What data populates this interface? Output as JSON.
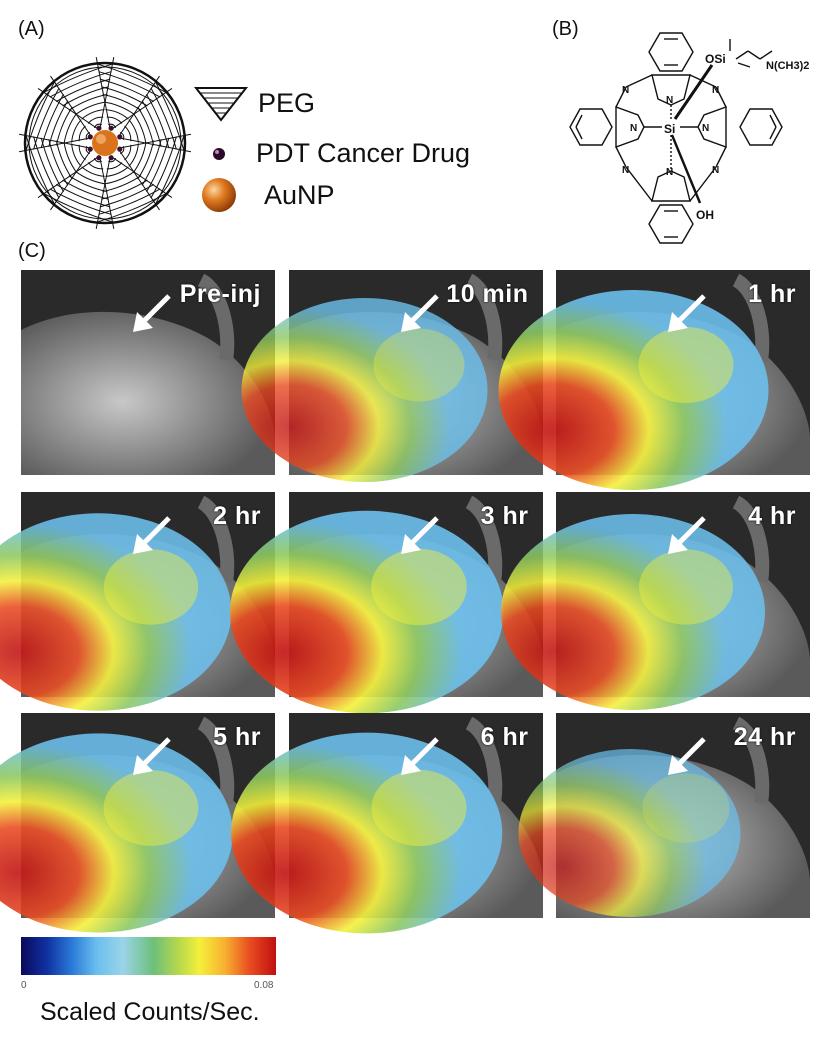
{
  "panels": {
    "a": {
      "label": "(A)",
      "legend": [
        {
          "label": "PEG",
          "icon": "peg-cone-icon"
        },
        {
          "label": "PDT Cancer Drug",
          "icon": "drug-dot-icon"
        },
        {
          "label": "AuNP",
          "icon": "gold-nanoparticle-icon"
        }
      ]
    },
    "b": {
      "label": "(B)",
      "labels": {
        "osi": "OSi",
        "amine": "N(CH3)2",
        "si": "Si",
        "oh": "OH",
        "n": "N"
      }
    },
    "c": {
      "label": "(C)",
      "timepoints": [
        {
          "label": "Pre-inj",
          "intensity": 0
        },
        {
          "label": "10 min",
          "intensity": 0.55
        },
        {
          "label": "1 hr",
          "intensity": 0.75
        },
        {
          "label": "2 hr",
          "intensity": 0.72
        },
        {
          "label": "3 hr",
          "intensity": 0.78
        },
        {
          "label": "4 hr",
          "intensity": 0.7
        },
        {
          "label": "5 hr",
          "intensity": 0.74
        },
        {
          "label": "6 hr",
          "intensity": 0.76
        },
        {
          "label": "24 hr",
          "intensity": 0.35
        }
      ],
      "colorbar": {
        "min_label": "0",
        "max_label": "0.08",
        "caption": "Scaled Counts/Sec."
      }
    }
  },
  "colors": {
    "gold": "#d9741c",
    "heat_red": "#c01010",
    "heat_yellow": "#f4f03a",
    "heat_green": "#8cc860",
    "heat_blue": "#6cc0ee",
    "mouse_gray": "#8a8a8a"
  }
}
